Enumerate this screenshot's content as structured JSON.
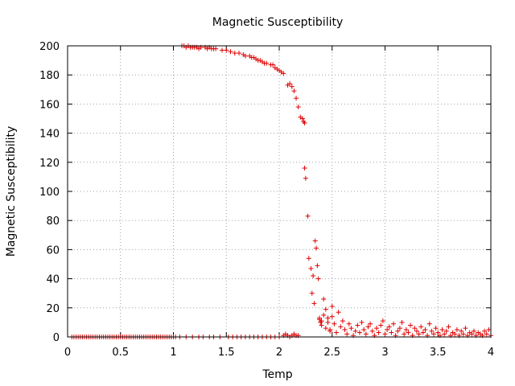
{
  "chart_data": {
    "type": "scatter",
    "title": "Magnetic Susceptibility",
    "xlabel": "Temp",
    "ylabel": "Magnetic Susceptibility",
    "xlim": [
      0,
      4
    ],
    "ylim": [
      0,
      200
    ],
    "xticks": [
      "0",
      "0.5",
      "1",
      "1.5",
      "2",
      "2.5",
      "3",
      "3.5",
      "4"
    ],
    "yticks": [
      "0",
      "20",
      "40",
      "60",
      "80",
      "100",
      "120",
      "140",
      "160",
      "180",
      "200"
    ],
    "grid": true,
    "marker": "plus",
    "color": "#e00000",
    "series": [
      {
        "low_branch_x": [
          0.04,
          0.06,
          0.08,
          0.1,
          0.12,
          0.14,
          0.16,
          0.18,
          0.2,
          0.22,
          0.24,
          0.26,
          0.28,
          0.3,
          0.32,
          0.34,
          0.36,
          0.38,
          0.4,
          0.42,
          0.44,
          0.46,
          0.48,
          0.5,
          0.52,
          0.54,
          0.56,
          0.58,
          0.6,
          0.62,
          0.64,
          0.66,
          0.68,
          0.7,
          0.72,
          0.74,
          0.76,
          0.78,
          0.8,
          0.82,
          0.84,
          0.86,
          0.88,
          0.9,
          0.92,
          0.94,
          0.96,
          0.98,
          1.0,
          1.02,
          1.06,
          1.12,
          1.18,
          1.24,
          1.28,
          1.34,
          1.38,
          1.44,
          1.52,
          1.56,
          1.6,
          1.64,
          1.68,
          1.72,
          1.76,
          1.8,
          1.84,
          1.88,
          1.92,
          1.96,
          2.0,
          2.04,
          2.06,
          2.08,
          2.1,
          2.12,
          2.14,
          2.16,
          2.18
        ],
        "low_branch_y": [
          0,
          0,
          0,
          0,
          0,
          0,
          0,
          0,
          0,
          0,
          0,
          0,
          0,
          0,
          0,
          0,
          0,
          0,
          0,
          0,
          0,
          0,
          0,
          0,
          0,
          0,
          0,
          0,
          0,
          0,
          0,
          0,
          0,
          0,
          0,
          0,
          0,
          0,
          0,
          0,
          0,
          0,
          0,
          0,
          0,
          0,
          0,
          0,
          0,
          0,
          0,
          0,
          0,
          0,
          0,
          0,
          0,
          0,
          0,
          0,
          0,
          0,
          0,
          0,
          0,
          0,
          0,
          0,
          0,
          0,
          0,
          1,
          2,
          1,
          0,
          1,
          2,
          1,
          1
        ],
        "high_branch_x": [
          1.08,
          1.1,
          1.12,
          1.14,
          1.16,
          1.18,
          1.2,
          1.22,
          1.24,
          1.26,
          1.3,
          1.32,
          1.34,
          1.36,
          1.38,
          1.4,
          1.46,
          1.5,
          1.54,
          1.58,
          1.62,
          1.66,
          1.68,
          1.72,
          1.74,
          1.76,
          1.78,
          1.8,
          1.82,
          1.84,
          1.86,
          1.88,
          1.92,
          1.94,
          1.96,
          1.98,
          2.0,
          2.02,
          2.04,
          2.08,
          2.1,
          2.12,
          2.14,
          2.16,
          2.18,
          2.2,
          2.22,
          2.23,
          2.24
        ],
        "high_branch_y": [
          200,
          200,
          199,
          200,
          199,
          199,
          199,
          199,
          198,
          199,
          199,
          198,
          199,
          198,
          198,
          198,
          197,
          197,
          196,
          195,
          195,
          194,
          193,
          193,
          192,
          192,
          191,
          190,
          190,
          189,
          188,
          188,
          187,
          187,
          185,
          184,
          183,
          182,
          181,
          173,
          174,
          172,
          169,
          164,
          158,
          151,
          150,
          148,
          147
        ],
        "transition_x": [
          2.24,
          2.25,
          2.27,
          2.28,
          2.3,
          2.31,
          2.32,
          2.33,
          2.34,
          2.35,
          2.36,
          2.37,
          2.38,
          2.39,
          2.4,
          2.42,
          2.44,
          2.46,
          2.48,
          2.5
        ],
        "transition_y": [
          116,
          109,
          83,
          54,
          47,
          30,
          42,
          23,
          66,
          61,
          49,
          40,
          13,
          10,
          11,
          26,
          19,
          13,
          5,
          21
        ],
        "tail_x": [
          2.38,
          2.4,
          2.42,
          2.44,
          2.46,
          2.48,
          2.5,
          2.52,
          2.54,
          2.56,
          2.58,
          2.6,
          2.62,
          2.64,
          2.66,
          2.68,
          2.7,
          2.72,
          2.74,
          2.76,
          2.78,
          2.8,
          2.82,
          2.84,
          2.86,
          2.88,
          2.9,
          2.92,
          2.94,
          2.96,
          2.98,
          3.0,
          3.02,
          3.04,
          3.06,
          3.08,
          3.1,
          3.12,
          3.14,
          3.16,
          3.18,
          3.2,
          3.22,
          3.24,
          3.26,
          3.28,
          3.3,
          3.32,
          3.34,
          3.36,
          3.38,
          3.4,
          3.42,
          3.44,
          3.46,
          3.48,
          3.5,
          3.52,
          3.54,
          3.56,
          3.58,
          3.6,
          3.62,
          3.64,
          3.66,
          3.68,
          3.7,
          3.72,
          3.74,
          3.76,
          3.78,
          3.8,
          3.82,
          3.84,
          3.86,
          3.88,
          3.9,
          3.92,
          3.94,
          3.96,
          3.98,
          4.0
        ],
        "tail_y": [
          12,
          8,
          15,
          6,
          10,
          4,
          14,
          9,
          3,
          17,
          7,
          11,
          5,
          2,
          9,
          6,
          1,
          4,
          8,
          3,
          10,
          5,
          2,
          7,
          9,
          4,
          1,
          6,
          3,
          8,
          11,
          2,
          5,
          7,
          3,
          9,
          1,
          4,
          6,
          10,
          2,
          5,
          3,
          8,
          1,
          6,
          4,
          2,
          7,
          3,
          5,
          1,
          9,
          4,
          2,
          6,
          3,
          1,
          5,
          2,
          4,
          7,
          1,
          3,
          2,
          5,
          1,
          4,
          2,
          6,
          1,
          3,
          2,
          4,
          1,
          3,
          2,
          1,
          4,
          2,
          5,
          1
        ]
      }
    ]
  }
}
